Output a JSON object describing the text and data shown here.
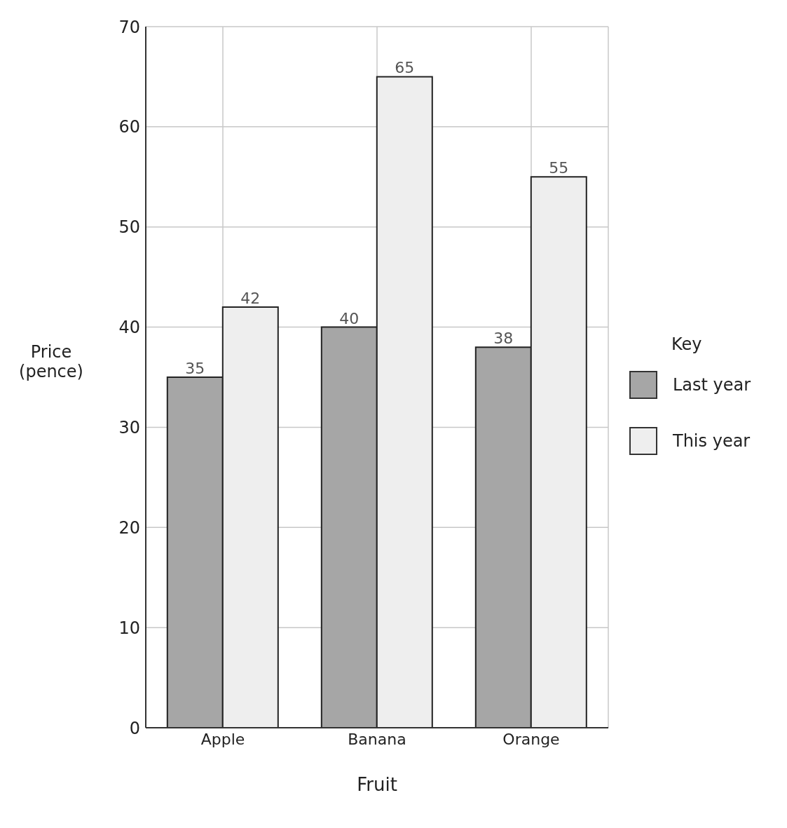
{
  "chart_data": {
    "type": "bar",
    "xlabel": "Fruit",
    "ylabel": "Price (pence)",
    "legend_title": "Key",
    "categories": [
      "Apple",
      "Banana",
      "Orange"
    ],
    "series": [
      {
        "name": "Last year",
        "color": "#a6a6a6",
        "values": [
          35,
          40,
          38
        ]
      },
      {
        "name": "This year",
        "color": "#eeeeee",
        "values": [
          42,
          65,
          55
        ]
      }
    ],
    "ylim": [
      0,
      70
    ],
    "yticks": [
      0,
      10,
      20,
      30,
      40,
      50,
      60,
      70
    ],
    "grid": true,
    "legend": "right",
    "data_labels": true
  }
}
